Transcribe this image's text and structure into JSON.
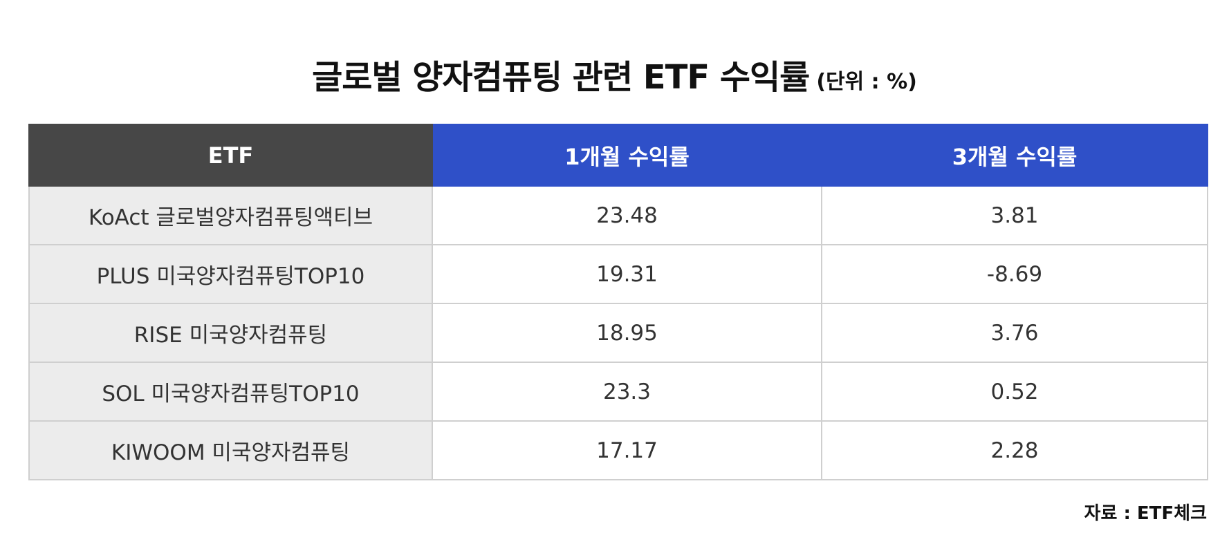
{
  "header": {
    "title": "글로벌 양자컴퓨팅 관련 ETF 수익률",
    "unit": "(단위 : %)"
  },
  "table": {
    "columns": [
      "ETF",
      "1개월 수익률",
      "3개월 수익률"
    ],
    "rows": [
      [
        "KoAct 글로벌양자컴퓨팅액티브",
        "23.48",
        "3.81"
      ],
      [
        "PLUS 미국양자컴퓨팅TOP10",
        "19.31",
        "-8.69"
      ],
      [
        "RISE 미국양자컴퓨팅",
        "18.95",
        "3.76"
      ],
      [
        "SOL 미국양자컴퓨팅TOP10",
        "23.3",
        "0.52"
      ],
      [
        "KIWOOM 미국양자컴퓨팅",
        "17.17",
        "2.28"
      ]
    ]
  },
  "source": "자료 : ETF체크"
}
